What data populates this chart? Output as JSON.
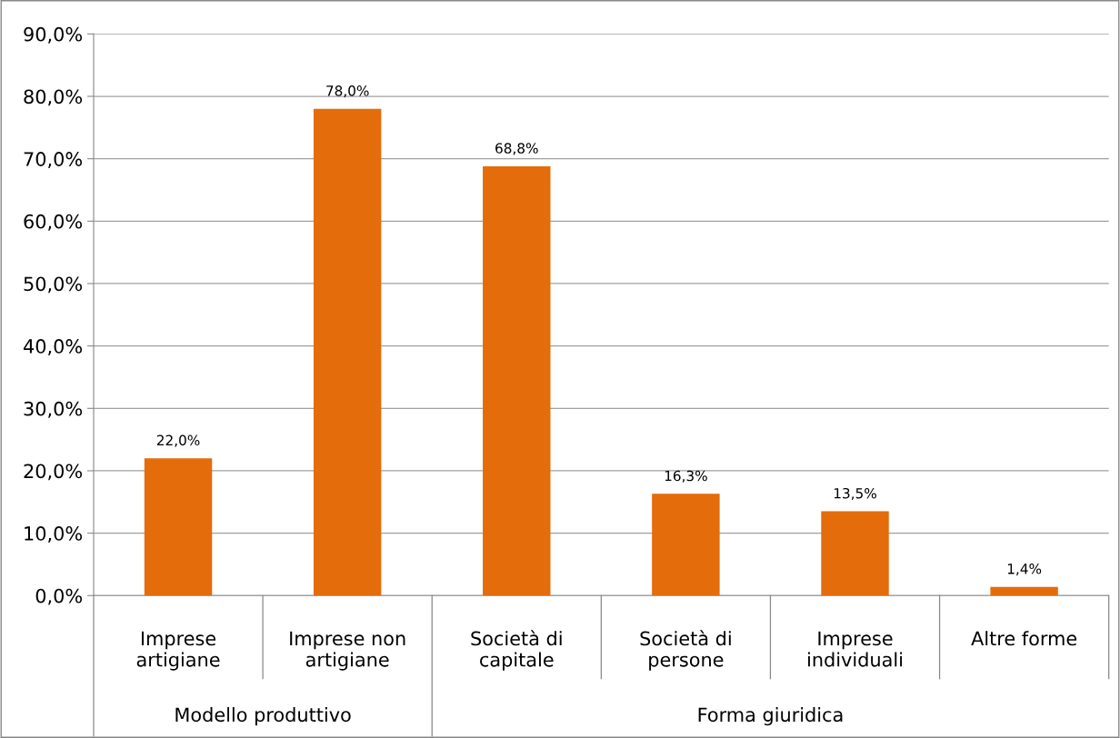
{
  "chart_data": {
    "type": "bar",
    "categories": [
      "Imprese\nartigiane",
      "Imprese non\nartigiane",
      "Società di\ncapitale",
      "Società di\npersone",
      "Imprese\nindividuali",
      "Altre forme"
    ],
    "values": [
      22.0,
      78.0,
      68.8,
      16.3,
      13.5,
      1.4
    ],
    "value_labels": [
      "22,0%",
      "78,0%",
      "68,8%",
      "16,3%",
      "13,5%",
      "1,4%"
    ],
    "color": "#e46c0a",
    "ylim": [
      0,
      90
    ],
    "yticks": [
      {
        "value": 0,
        "label": "0,0%"
      },
      {
        "value": 10,
        "label": "10,0%"
      },
      {
        "value": 20,
        "label": "20,0%"
      },
      {
        "value": 30,
        "label": "30,0%"
      },
      {
        "value": 40,
        "label": "40,0%"
      },
      {
        "value": 50,
        "label": "50,0%"
      },
      {
        "value": 60,
        "label": "60,0%"
      },
      {
        "value": 70,
        "label": "70,0%"
      },
      {
        "value": 80,
        "label": "80,0%"
      },
      {
        "value": 90,
        "label": "90,0%"
      }
    ],
    "annotations": [
      "Modello produttivo",
      "Forma giuridica"
    ],
    "grid": "y",
    "legend": false
  }
}
